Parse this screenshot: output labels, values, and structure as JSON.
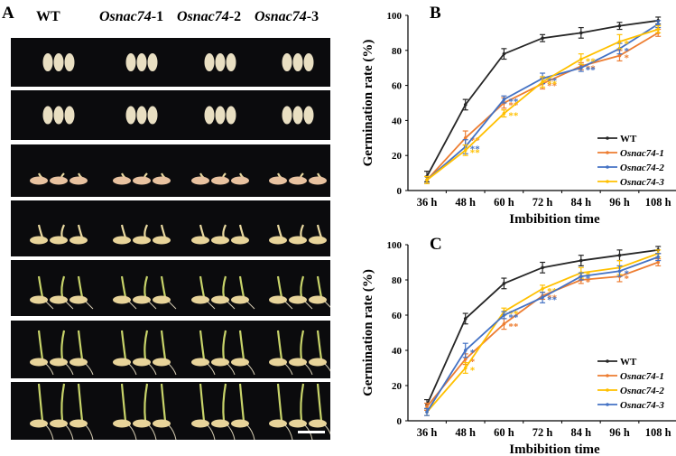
{
  "figure": {
    "panel_labels": [
      "A",
      "B",
      "C"
    ],
    "panel_a": {
      "column_headers": [
        {
          "plain": "WT",
          "italic": "",
          "suffix": ""
        },
        {
          "plain": "",
          "italic": "Osnac74",
          "suffix": "-1"
        },
        {
          "plain": "",
          "italic": "Osnac74",
          "suffix": "-2"
        },
        {
          "plain": "",
          "italic": "Osnac74",
          "suffix": "-3"
        }
      ],
      "row_count": 7,
      "row_stages": [
        "dry seed",
        "imbibed seed",
        "early germination",
        "shoot emergence",
        "shoot elongation",
        "seedling growth",
        "seedling growth (late)"
      ],
      "has_scale_bar": true
    }
  },
  "chart_data": [
    {
      "id": "B",
      "type": "line",
      "title": "",
      "xlabel": "Imbibition time",
      "ylabel": "Germination rate (%)",
      "categories": [
        "36 h",
        "48 h",
        "60 h",
        "72 h",
        "84 h",
        "96 h",
        "108 h"
      ],
      "ylim": [
        0,
        100
      ],
      "yticks": [
        0,
        20,
        40,
        60,
        80,
        100
      ],
      "grid": false,
      "legend_position": "bottom-right",
      "series": [
        {
          "name": "WT",
          "name_italic": false,
          "color": "#262626",
          "values": [
            8,
            49,
            78,
            87,
            90,
            94,
            97
          ],
          "errors": [
            3,
            3,
            3,
            2,
            3,
            2,
            2
          ],
          "significance": [
            "",
            "",
            "",
            "",
            "",
            "",
            ""
          ]
        },
        {
          "name": "Osnac74-1",
          "name_italic": true,
          "color": "#ed7d31",
          "values": [
            6,
            30,
            50,
            61,
            71,
            77,
            90
          ],
          "errors": [
            2,
            4,
            3,
            3,
            2,
            3,
            2
          ],
          "significance": [
            "",
            "**",
            "**",
            "**",
            "**",
            "*",
            ""
          ]
        },
        {
          "name": "Osnac74-2",
          "name_italic": true,
          "color": "#4472c4",
          "values": [
            6,
            25,
            52,
            64,
            70,
            81,
            95
          ],
          "errors": [
            2,
            4,
            2,
            3,
            2,
            3,
            2
          ],
          "significance": [
            "",
            "**",
            "**",
            "**",
            "**",
            "*",
            ""
          ]
        },
        {
          "name": "Osnac74-3",
          "name_italic": true,
          "color": "#ffc000",
          "values": [
            6,
            23,
            44,
            62,
            75,
            85,
            92
          ],
          "errors": [
            2,
            3,
            2,
            3,
            3,
            4,
            2
          ],
          "significance": [
            "",
            "**",
            "**",
            "**",
            "**",
            "*",
            ""
          ]
        }
      ]
    },
    {
      "id": "C",
      "type": "line",
      "title": "",
      "xlabel": "Imbibition time",
      "ylabel": "Germination rate (%)",
      "categories": [
        "36 h",
        "48 h",
        "60 h",
        "72 h",
        "84 h",
        "96 h",
        "108 h"
      ],
      "ylim": [
        0,
        100
      ],
      "yticks": [
        0,
        20,
        40,
        60,
        80,
        100
      ],
      "grid": false,
      "legend_position": "bottom-right",
      "series": [
        {
          "name": "WT",
          "name_italic": false,
          "color": "#262626",
          "values": [
            9,
            58,
            78,
            87,
            91,
            94,
            97
          ],
          "errors": [
            3,
            3,
            3,
            3,
            3,
            3,
            2
          ],
          "significance": [
            "",
            "",
            "",
            "",
            "",
            "",
            ""
          ]
        },
        {
          "name": "Osnac74-1",
          "name_italic": true,
          "color": "#ed7d31",
          "values": [
            8,
            35,
            55,
            71,
            80,
            82,
            90
          ],
          "errors": [
            2,
            3,
            3,
            2,
            2,
            3,
            2
          ],
          "significance": [
            "",
            "*",
            "**",
            "**",
            "*",
            "*",
            ""
          ]
        },
        {
          "name": "Osnac74-2",
          "name_italic": true,
          "color": "#ffc000",
          "values": [
            5,
            30,
            62,
            75,
            84,
            87,
            95
          ],
          "errors": [
            2,
            3,
            2,
            2,
            3,
            4,
            2
          ],
          "significance": [
            "",
            "*",
            "**",
            "**",
            "*",
            "",
            ""
          ]
        },
        {
          "name": "Osnac74-3",
          "name_italic": true,
          "color": "#4472c4",
          "values": [
            5,
            40,
            60,
            70,
            82,
            85,
            93
          ],
          "errors": [
            2,
            4,
            2,
            3,
            2,
            3,
            2
          ],
          "significance": [
            "",
            "*",
            "**",
            "**",
            "*",
            "*",
            ""
          ]
        }
      ]
    }
  ]
}
